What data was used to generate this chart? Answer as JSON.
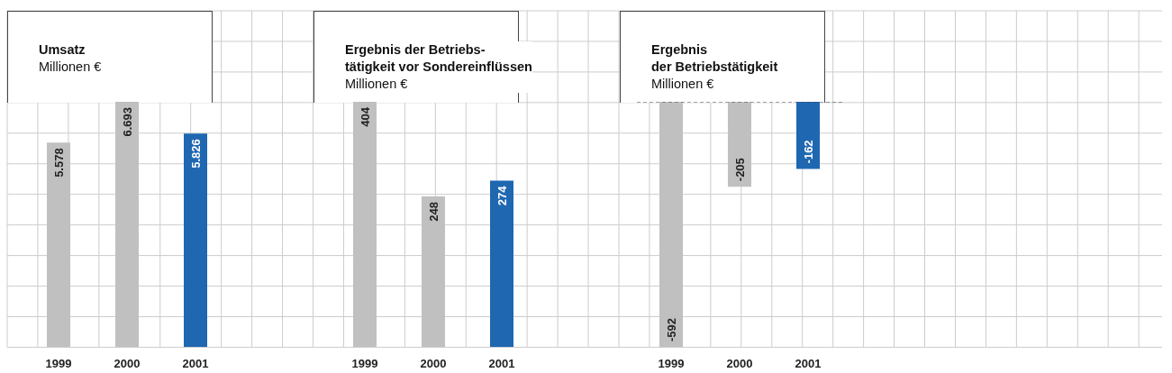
{
  "chart_data": [
    {
      "type": "bar",
      "title": "Umsatz",
      "subtitle": "Millionen €",
      "categories": [
        "1999",
        "2000",
        "2001"
      ],
      "values": [
        5578,
        6693,
        5826
      ],
      "colors": [
        "#c0c0c0",
        "#c0c0c0",
        "#1f67b1"
      ],
      "value_labels": [
        "5.578",
        "6.693",
        "5.826"
      ]
    },
    {
      "type": "bar",
      "title": "Ergebnis der Betriebs-\ntätigkeit vor Sondereinflüssen",
      "subtitle": "Millionen €",
      "categories": [
        "1999",
        "2000",
        "2001"
      ],
      "values": [
        404,
        248,
        274
      ],
      "colors": [
        "#c0c0c0",
        "#c0c0c0",
        "#1f67b1"
      ],
      "value_labels": [
        "404",
        "248",
        "274"
      ]
    },
    {
      "type": "bar",
      "title": "Ergebnis\nder Betriebstätigkeit",
      "subtitle": "Millionen €",
      "categories": [
        "1999",
        "2000",
        "2001"
      ],
      "values": [
        -592,
        -205,
        -162
      ],
      "colors": [
        "#c0c0c0",
        "#c0c0c0",
        "#1f67b1"
      ],
      "value_labels": [
        "-592",
        "-205",
        "-162"
      ],
      "ref_lines": [
        {
          "axis": "y",
          "value": 0,
          "line_style": "dashed",
          "color": "#444444"
        }
      ]
    }
  ]
}
